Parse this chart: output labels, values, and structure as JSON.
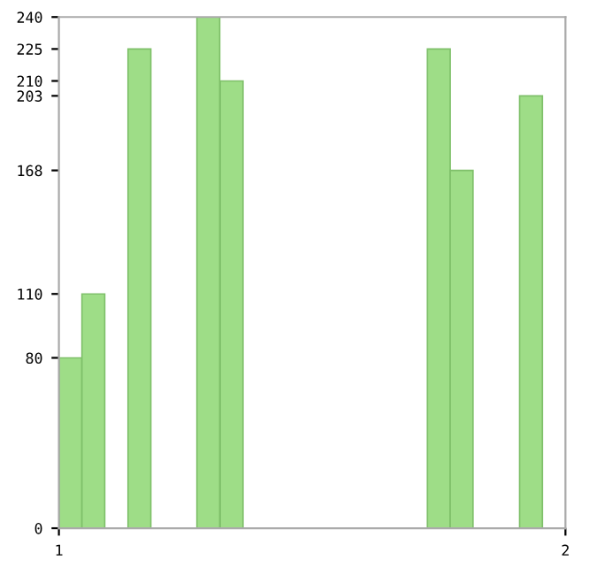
{
  "chart_data": {
    "type": "bar",
    "x": [
      1.023,
      1.068,
      1.159,
      1.295,
      1.341,
      1.75,
      1.795,
      1.932
    ],
    "values": [
      80,
      110,
      225,
      240,
      210,
      225,
      168,
      203
    ],
    "color": "#9edd87",
    "xlim": [
      1,
      2
    ],
    "xticks": [
      1,
      2
    ],
    "ylim": [
      0,
      240
    ],
    "yticks": [
      0,
      80,
      110,
      168,
      203,
      210,
      225,
      240
    ],
    "grid": false
  }
}
